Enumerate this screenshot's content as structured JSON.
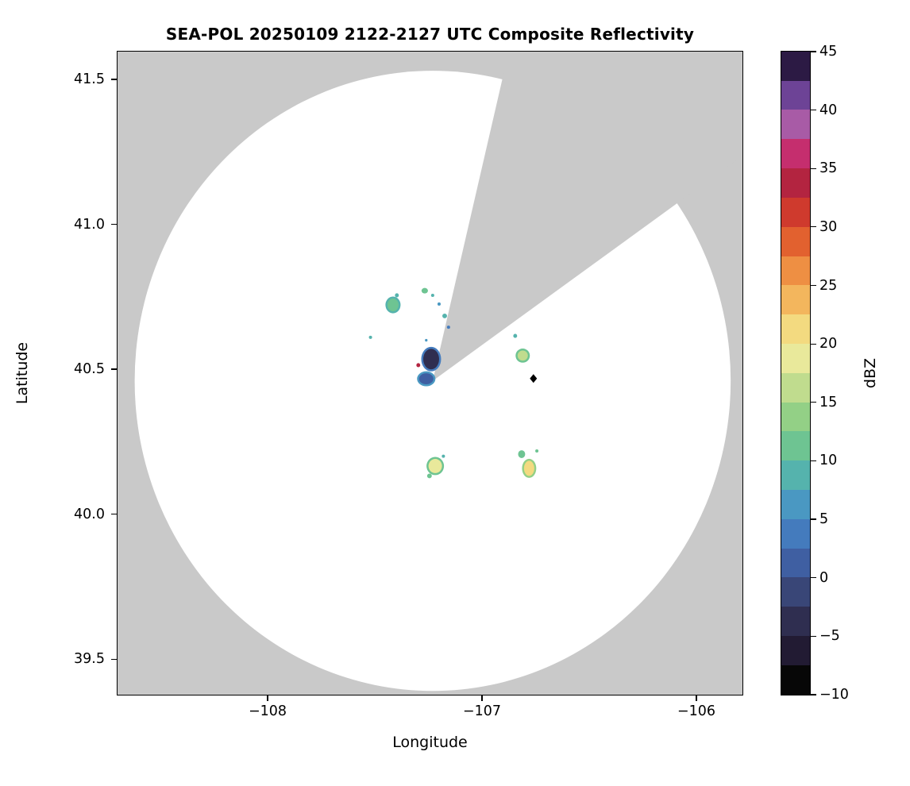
{
  "chart_data": {
    "type": "heatmap",
    "subtype": "radar-composite-reflectivity-map",
    "title": "SEA-POL 20250109 2122-2127 UTC Composite Reflectivity",
    "xlabel": "Longitude",
    "ylabel": "Latitude",
    "xlim": [
      -108.7,
      -105.785
    ],
    "ylim": [
      39.377,
      41.596
    ],
    "grid": false,
    "nodata_color": "#c9c9c9",
    "coverage_color": "#ffffff",
    "frame_color": "#000000",
    "xticks": [
      {
        "value": -108,
        "label": "−108"
      },
      {
        "value": -107,
        "label": "−107"
      },
      {
        "value": -106,
        "label": "−106"
      }
    ],
    "yticks": [
      {
        "value": 41.5,
        "label": "41.5"
      },
      {
        "value": 41.0,
        "label": "41.0"
      },
      {
        "value": 40.5,
        "label": "40.5"
      },
      {
        "value": 40.0,
        "label": "40.0"
      },
      {
        "value": 39.5,
        "label": "39.5"
      }
    ],
    "radar_coverage": {
      "center_lon": -107.23,
      "center_lat": 40.46,
      "radius_lon_deg": 1.39,
      "radius_lat_deg": 1.07,
      "blanked_sector_azimuth_start_deg": 13,
      "blanked_sector_azimuth_end_deg": 54
    },
    "colorbar": {
      "label": "dBZ",
      "vmin": -10,
      "vmax": 45,
      "band_step": 2.5,
      "ticks": [
        {
          "value": 45,
          "label": "45"
        },
        {
          "value": 40,
          "label": "40"
        },
        {
          "value": 35,
          "label": "35"
        },
        {
          "value": 30,
          "label": "30"
        },
        {
          "value": 25,
          "label": "25"
        },
        {
          "value": 20,
          "label": "20"
        },
        {
          "value": 15,
          "label": "15"
        },
        {
          "value": 10,
          "label": "10"
        },
        {
          "value": 5,
          "label": "5"
        },
        {
          "value": 0,
          "label": "0"
        },
        {
          "value": -5,
          "label": "−5"
        },
        {
          "value": -10,
          "label": "−10"
        }
      ],
      "band_colors_bottom_to_top": [
        "#070707",
        "#221b33",
        "#2f2e50",
        "#394677",
        "#3f5fa2",
        "#447bbd",
        "#4a98c2",
        "#55b3ad",
        "#6ec492",
        "#93d086",
        "#c0dc8e",
        "#e9e99b",
        "#f3da80",
        "#f3b65d",
        "#ee8f43",
        "#e2612f",
        "#cf3a2d",
        "#b32440",
        "#c52e6e",
        "#a85ba6",
        "#6d4396",
        "#2c1a44"
      ]
    },
    "station_marker": {
      "lon": -106.76,
      "lat": 40.468,
      "shape": "diamond",
      "color": "#000000"
    },
    "echoes": [
      {
        "lon": -107.415,
        "lat": 40.722,
        "w_deg": 0.052,
        "h_deg": 0.044,
        "dbz": 12,
        "edge_dbz": 9
      },
      {
        "lon": -107.397,
        "lat": 40.755,
        "w_deg": 0.018,
        "h_deg": 0.014,
        "dbz": 8
      },
      {
        "lon": -107.267,
        "lat": 40.771,
        "w_deg": 0.03,
        "h_deg": 0.019,
        "dbz": 11
      },
      {
        "lon": -107.23,
        "lat": 40.755,
        "w_deg": 0.015,
        "h_deg": 0.011,
        "dbz": 9
      },
      {
        "lon": -107.2,
        "lat": 40.725,
        "w_deg": 0.015,
        "h_deg": 0.011,
        "dbz": 7
      },
      {
        "lon": -107.174,
        "lat": 40.684,
        "w_deg": 0.022,
        "h_deg": 0.016,
        "dbz": 9
      },
      {
        "lon": -107.156,
        "lat": 40.645,
        "w_deg": 0.015,
        "h_deg": 0.011,
        "dbz": 4
      },
      {
        "lon": -107.52,
        "lat": 40.61,
        "w_deg": 0.015,
        "h_deg": 0.011,
        "dbz": 8
      },
      {
        "lon": -107.26,
        "lat": 40.6,
        "w_deg": 0.012,
        "h_deg": 0.009,
        "dbz": 6
      },
      {
        "lon": -107.237,
        "lat": 40.535,
        "w_deg": 0.074,
        "h_deg": 0.071,
        "dbz": -4,
        "edge_dbz": 4
      },
      {
        "lon": -107.297,
        "lat": 40.514,
        "w_deg": 0.018,
        "h_deg": 0.014,
        "dbz": 33
      },
      {
        "lon": -107.26,
        "lat": 40.467,
        "w_deg": 0.067,
        "h_deg": 0.038,
        "dbz": 1,
        "edge_dbz": 5
      },
      {
        "lon": -106.845,
        "lat": 40.615,
        "w_deg": 0.018,
        "h_deg": 0.014,
        "dbz": 8
      },
      {
        "lon": -106.81,
        "lat": 40.547,
        "w_deg": 0.048,
        "h_deg": 0.035,
        "dbz": 15,
        "edge_dbz": 11
      },
      {
        "lon": -107.218,
        "lat": 40.166,
        "w_deg": 0.063,
        "h_deg": 0.049,
        "dbz": 18,
        "edge_dbz": 11
      },
      {
        "lon": -107.245,
        "lat": 40.132,
        "w_deg": 0.022,
        "h_deg": 0.016,
        "dbz": 10
      },
      {
        "lon": -107.18,
        "lat": 40.2,
        "w_deg": 0.015,
        "h_deg": 0.011,
        "dbz": 9
      },
      {
        "lon": -106.815,
        "lat": 40.207,
        "w_deg": 0.033,
        "h_deg": 0.027,
        "dbz": 12
      },
      {
        "lon": -106.78,
        "lat": 40.158,
        "w_deg": 0.048,
        "h_deg": 0.052,
        "dbz": 20,
        "edge_dbz": 13
      },
      {
        "lon": -106.744,
        "lat": 40.218,
        "w_deg": 0.015,
        "h_deg": 0.011,
        "dbz": 10
      }
    ]
  }
}
